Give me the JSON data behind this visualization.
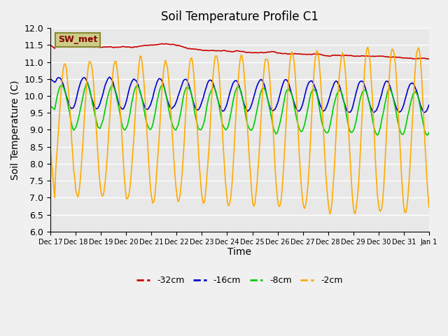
{
  "title": "Soil Temperature Profile C1",
  "xlabel": "Time",
  "ylabel": "Soil Temperature (C)",
  "ylim": [
    6.0,
    12.0
  ],
  "yticks": [
    6.0,
    6.5,
    7.0,
    7.5,
    8.0,
    8.5,
    9.0,
    9.5,
    10.0,
    10.5,
    11.0,
    11.5,
    12.0
  ],
  "xtick_labels": [
    "Dec 17",
    "Dec 18",
    "Dec 19",
    "Dec 20",
    "Dec 21",
    "Dec 22",
    "Dec 23",
    "Dec 24",
    "Dec 25",
    "Dec 26",
    "Dec 27",
    "Dec 28",
    "Dec 29",
    "Dec 30",
    "Dec 31",
    "Jan 1"
  ],
  "colors": {
    "-32cm": "#cc0000",
    "-16cm": "#0000cc",
    "-8cm": "#00cc00",
    "-2cm": "#ffaa00"
  },
  "background_color": "#e8e8e8",
  "grid_color": "#ffffff",
  "legend_box_color": "#cccc88",
  "legend_box_text": "SW_met",
  "legend_box_text_color": "#880000"
}
